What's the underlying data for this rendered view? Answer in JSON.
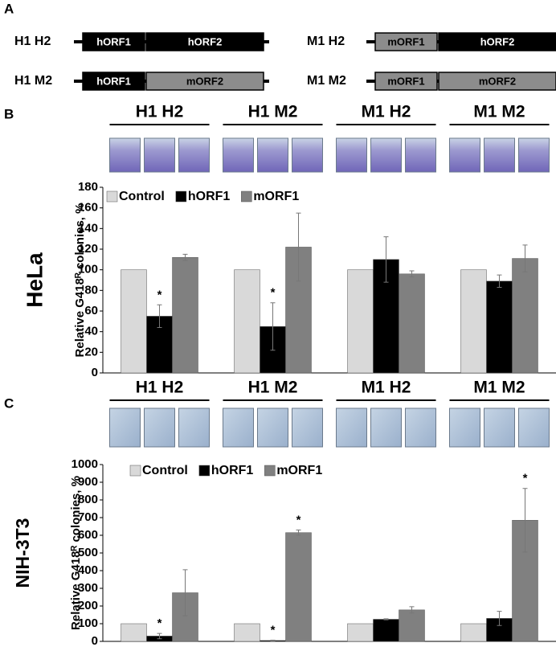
{
  "panel_labels": [
    "A",
    "B",
    "C"
  ],
  "constructs": [
    {
      "label": "H1 H2",
      "segments": [
        {
          "text": "hORF1",
          "color": "#000000"
        },
        {
          "text": "hORF2",
          "color": "#000000"
        }
      ]
    },
    {
      "label": "M1 H2",
      "segments": [
        {
          "text": "mORF1",
          "color": "#8c8c8c"
        },
        {
          "text": "hORF2",
          "color": "#000000"
        }
      ]
    },
    {
      "label": "H1 M2",
      "segments": [
        {
          "text": "hORF1",
          "color": "#000000"
        },
        {
          "text": "mORF2",
          "color": "#8c8c8c"
        }
      ]
    },
    {
      "label": "M1 M2",
      "segments": [
        {
          "text": "mORF1",
          "color": "#8c8c8c"
        },
        {
          "text": "mORF2",
          "color": "#8c8c8c"
        }
      ]
    }
  ],
  "chart_data": [
    {
      "type": "bar",
      "side_label": "HeLa",
      "ylabel": "Relative G418ᴿ colonies, %",
      "categories": [
        "H1 H2",
        "H1 M2",
        "M1 H2",
        "M1 M2"
      ],
      "series": [
        {
          "name": "Control",
          "color": "#d9d9d9",
          "values": [
            100,
            100,
            100,
            100
          ]
        },
        {
          "name": "hORF1",
          "color": "#000000",
          "values": [
            55,
            45,
            110,
            89
          ],
          "errors": [
            11,
            23,
            22,
            6
          ],
          "labels": [
            "*",
            "*",
            null,
            null
          ]
        },
        {
          "name": "mORF1",
          "color": "#808080",
          "values": [
            112,
            122,
            96,
            111
          ],
          "errors": [
            3,
            33,
            3,
            13
          ]
        }
      ],
      "ylim": [
        0,
        180
      ],
      "yticks": [
        0,
        20,
        40,
        60,
        80,
        100,
        120,
        140,
        160,
        180
      ],
      "legend": "top-left"
    },
    {
      "type": "bar",
      "side_label": "NIH-3T3",
      "ylabel": "Relative G418ᴿ colonies, %",
      "categories": [
        "H1 H2",
        "H1 M2",
        "M1 H2",
        "M1 M2"
      ],
      "series": [
        {
          "name": "Control",
          "color": "#d9d9d9",
          "values": [
            100,
            100,
            100,
            100
          ]
        },
        {
          "name": "hORF1",
          "color": "#000000",
          "values": [
            30,
            5,
            125,
            130
          ],
          "errors": [
            15,
            2,
            3,
            40
          ],
          "labels": [
            "*",
            "*",
            null,
            null
          ]
        },
        {
          "name": "mORF1",
          "color": "#808080",
          "values": [
            275,
            615,
            178,
            685
          ],
          "errors": [
            130,
            15,
            18,
            180
          ],
          "labels": [
            null,
            "*",
            null,
            "*"
          ]
        }
      ],
      "ylim": [
        0,
        1000
      ],
      "yticks": [
        0,
        100,
        200,
        300,
        400,
        500,
        600,
        700,
        800,
        900,
        1000
      ],
      "legend": "top-left"
    }
  ]
}
